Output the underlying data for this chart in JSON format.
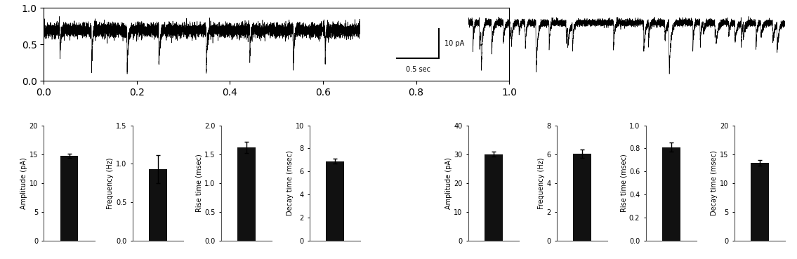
{
  "left_bars": {
    "amplitude": {
      "value": 14.7,
      "err": 0.4,
      "ylim": [
        0,
        20
      ],
      "yticks": [
        0,
        5,
        10,
        15,
        20
      ],
      "ylabel": "Amplitude (pA)"
    },
    "frequency": {
      "value": 0.93,
      "err": 0.18,
      "ylim": [
        0,
        1.5
      ],
      "yticks": [
        0,
        0.5,
        1.0,
        1.5
      ],
      "ylabel": "Frequency (Hz)"
    },
    "rise_time": {
      "value": 1.62,
      "err": 0.1,
      "ylim": [
        0,
        2
      ],
      "yticks": [
        0,
        0.5,
        1.0,
        1.5,
        2.0
      ],
      "ylabel": "Rise time (msec)"
    },
    "decay_time": {
      "value": 6.9,
      "err": 0.2,
      "ylim": [
        0,
        10
      ],
      "yticks": [
        0,
        2,
        4,
        6,
        8,
        10
      ],
      "ylabel": "Decay time (msec)"
    }
  },
  "right_bars": {
    "amplitude": {
      "value": 30.0,
      "err": 0.8,
      "ylim": [
        0,
        40
      ],
      "yticks": [
        0,
        10,
        20,
        30,
        40
      ],
      "ylabel": "Amplitude (pA)"
    },
    "frequency": {
      "value": 6.05,
      "err": 0.3,
      "ylim": [
        0,
        8
      ],
      "yticks": [
        0,
        2,
        4,
        6,
        8
      ],
      "ylabel": "Frequency (Hz)"
    },
    "rise_time": {
      "value": 0.81,
      "err": 0.04,
      "ylim": [
        0,
        1
      ],
      "yticks": [
        0,
        0.2,
        0.4,
        0.6,
        0.8,
        1.0
      ],
      "ylabel": "Rise time (msec)"
    },
    "decay_time": {
      "value": 13.5,
      "err": 0.5,
      "ylim": [
        0,
        20
      ],
      "yticks": [
        0,
        5,
        10,
        15,
        20
      ],
      "ylabel": "Decay time (msec)"
    }
  },
  "bar_color": "#111111",
  "bar_width": 0.5,
  "scale_bar_text_pA": "10 pA",
  "scale_bar_text_sec": "0.5 sec",
  "bg_color": "#ffffff"
}
